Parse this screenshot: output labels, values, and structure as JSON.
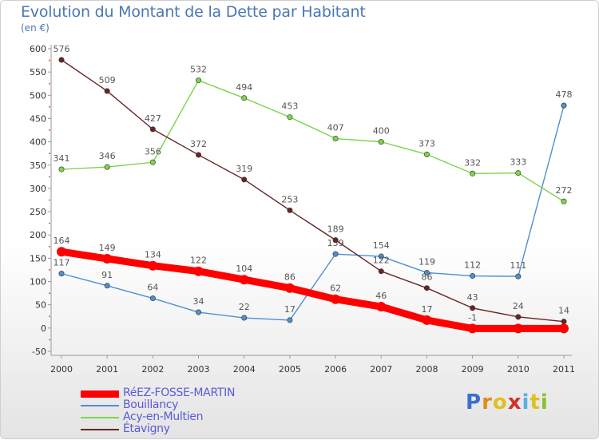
{
  "title": "Evolution du Montant de la Dette par Habitant",
  "unit": "(en €)",
  "logo": "Proxiti",
  "colors": {
    "reez": "#ff0000",
    "bouillancy": "#4f8fd0",
    "acy": "#7dd44a",
    "etavigny": "#6b2424",
    "title": "#4a77b4"
  },
  "chart_data": {
    "type": "line",
    "title": "Evolution du Montant de la Dette par Habitant",
    "subtitle": "(en €)",
    "x": [
      "2000",
      "2001",
      "2002",
      "2003",
      "2004",
      "2005",
      "2006",
      "2007",
      "2008",
      "2009",
      "2010",
      "2011"
    ],
    "ylim": [
      -50,
      600
    ],
    "yticks": [
      -50,
      0,
      50,
      100,
      150,
      200,
      250,
      300,
      350,
      400,
      450,
      500,
      550,
      600
    ],
    "grid": false,
    "legend_position": "bottom-left",
    "series": [
      {
        "name": "RéEZ-FOSSE-MARTIN",
        "color": "#ff0000",
        "values": [
          164,
          149,
          134,
          122,
          104,
          86,
          62,
          46,
          17,
          -1,
          -1,
          -1
        ],
        "labels": [
          "164",
          "149",
          "134",
          "122",
          "104",
          "86",
          "62",
          "46",
          "17",
          "-1",
          "",
          ""
        ]
      },
      {
        "name": "Bouillancy",
        "color": "#4f8fd0",
        "values": [
          117,
          91,
          64,
          34,
          22,
          17,
          159,
          154,
          119,
          112,
          111,
          478
        ],
        "labels": [
          "117",
          "91",
          "64",
          "34",
          "22",
          "17",
          "159",
          "154",
          "119",
          "112",
          "111",
          "478"
        ]
      },
      {
        "name": "Acy-en-Multien",
        "color": "#7dd44a",
        "values": [
          341,
          346,
          356,
          532,
          494,
          453,
          407,
          400,
          373,
          332,
          333,
          272
        ],
        "labels": [
          "341",
          "346",
          "356",
          "532",
          "494",
          "453",
          "407",
          "400",
          "373",
          "332",
          "333",
          "272"
        ]
      },
      {
        "name": "Étavigny",
        "color": "#6b2424",
        "values": [
          576,
          509,
          427,
          372,
          319,
          253,
          189,
          122,
          86,
          43,
          24,
          14
        ],
        "labels": [
          "576",
          "509",
          "427",
          "372",
          "319",
          "253",
          "189",
          "122",
          "86",
          "43",
          "24",
          "14"
        ]
      }
    ]
  }
}
